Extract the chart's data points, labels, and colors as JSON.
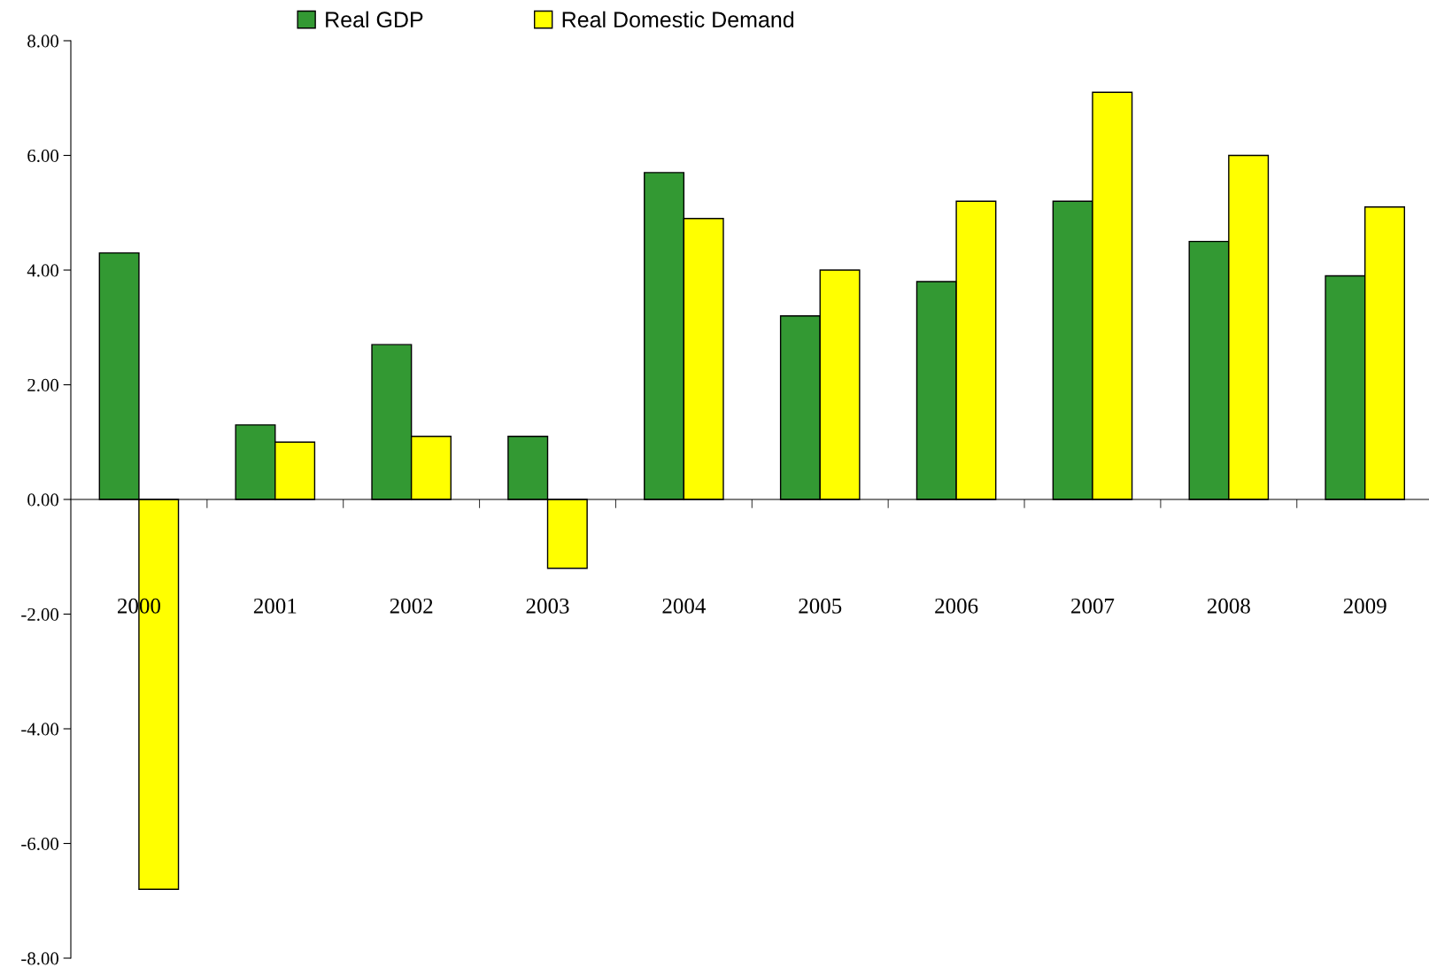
{
  "chart_data": {
    "type": "bar",
    "categories": [
      "2000",
      "2001",
      "2002",
      "2003",
      "2004",
      "2005",
      "2006",
      "2007",
      "2008",
      "2009"
    ],
    "series": [
      {
        "name": "Real GDP",
        "color": "#339933",
        "values": [
          4.3,
          1.3,
          2.7,
          1.1,
          5.7,
          3.2,
          3.8,
          5.2,
          4.5,
          3.9
        ]
      },
      {
        "name": "Real Domestic Demand",
        "color": "#ffff00",
        "values": [
          -6.8,
          1.0,
          1.1,
          -1.2,
          4.9,
          4.0,
          5.2,
          7.1,
          6.0,
          5.1
        ]
      }
    ],
    "ylim": [
      -8,
      8
    ],
    "yticks": [
      {
        "value": -8,
        "label": "-8.00"
      },
      {
        "value": -6,
        "label": "-6.00"
      },
      {
        "value": -4,
        "label": "-4.00"
      },
      {
        "value": -2,
        "label": "-2.00"
      },
      {
        "value": 0,
        "label": "0.00"
      },
      {
        "value": 2,
        "label": "2.00"
      },
      {
        "value": 4,
        "label": "4.00"
      },
      {
        "value": 6,
        "label": "6.00"
      },
      {
        "value": 8,
        "label": "8.00"
      }
    ],
    "legend": "top"
  }
}
